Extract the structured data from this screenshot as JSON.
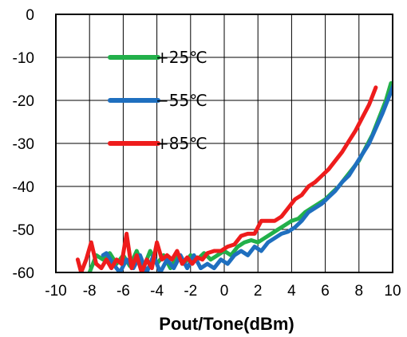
{
  "chart_data": {
    "type": "line",
    "title": "",
    "xlabel": "Pout/Tone(dBm)",
    "ylabel": "",
    "xlim": [
      -10,
      10
    ],
    "ylim": [
      -60,
      0
    ],
    "x_ticks": [
      -10,
      -8,
      -6,
      -4,
      -2,
      0,
      2,
      4,
      6,
      8,
      10
    ],
    "y_ticks": [
      0,
      -10,
      -20,
      -30,
      -40,
      -50,
      -60
    ],
    "x_tick_labels": [
      "-10",
      "-8",
      "-6",
      "-4",
      "-2",
      "0",
      "2",
      "4",
      "6",
      "8",
      "10"
    ],
    "y_tick_labels": [
      "0",
      "-10",
      "-20",
      "-30",
      "-40",
      "-50",
      "-60"
    ],
    "grid": true,
    "legend_position": "top-left",
    "series": [
      {
        "name": "+25℃",
        "color": "#22b04a",
        "points": [
          [
            -8.0,
            -60
          ],
          [
            -7.6,
            -56
          ],
          [
            -7.2,
            -57
          ],
          [
            -6.8,
            -55.5
          ],
          [
            -6.4,
            -58
          ],
          [
            -6.0,
            -56
          ],
          [
            -5.6,
            -58.5
          ],
          [
            -5.2,
            -55
          ],
          [
            -4.8,
            -59
          ],
          [
            -4.4,
            -55
          ],
          [
            -4.0,
            -58
          ],
          [
            -3.6,
            -56
          ],
          [
            -3.2,
            -59
          ],
          [
            -2.8,
            -56
          ],
          [
            -2.4,
            -58
          ],
          [
            -2.0,
            -56
          ],
          [
            -1.6,
            -57
          ],
          [
            -1.2,
            -55.5
          ],
          [
            -0.8,
            -57
          ],
          [
            -0.4,
            -56
          ],
          [
            0.0,
            -55
          ],
          [
            0.4,
            -56
          ],
          [
            0.8,
            -54
          ],
          [
            1.2,
            -53
          ],
          [
            1.6,
            -52.5
          ],
          [
            2.0,
            -53
          ],
          [
            2.4,
            -52
          ],
          [
            2.8,
            -51
          ],
          [
            3.2,
            -50
          ],
          [
            3.6,
            -49
          ],
          [
            4.0,
            -48
          ],
          [
            4.4,
            -47.5
          ],
          [
            4.8,
            -46
          ],
          [
            5.2,
            -45
          ],
          [
            5.6,
            -44
          ],
          [
            6.0,
            -43
          ],
          [
            6.4,
            -41.5
          ],
          [
            6.8,
            -40
          ],
          [
            7.2,
            -38
          ],
          [
            7.6,
            -36
          ],
          [
            8.0,
            -34
          ],
          [
            8.4,
            -31
          ],
          [
            8.8,
            -28
          ],
          [
            9.2,
            -24
          ],
          [
            9.6,
            -20
          ],
          [
            9.9,
            -16
          ]
        ]
      },
      {
        "name": "−55℃",
        "color": "#1f6fbf",
        "points": [
          [
            -7.2,
            -56
          ],
          [
            -7.0,
            -55.5
          ],
          [
            -6.6,
            -58
          ],
          [
            -6.2,
            -60
          ],
          [
            -5.8,
            -57
          ],
          [
            -5.4,
            -59
          ],
          [
            -5.0,
            -56
          ],
          [
            -4.6,
            -60
          ],
          [
            -4.2,
            -56
          ],
          [
            -3.8,
            -60
          ],
          [
            -3.4,
            -57
          ],
          [
            -3.0,
            -59
          ],
          [
            -2.6,
            -56
          ],
          [
            -2.2,
            -59
          ],
          [
            -1.8,
            -56
          ],
          [
            -1.4,
            -59
          ],
          [
            -1.0,
            -58
          ],
          [
            -0.6,
            -59
          ],
          [
            -0.2,
            -57
          ],
          [
            0.2,
            -58
          ],
          [
            0.6,
            -56
          ],
          [
            1.0,
            -55
          ],
          [
            1.4,
            -56
          ],
          [
            1.8,
            -54
          ],
          [
            2.2,
            -55
          ],
          [
            2.6,
            -53
          ],
          [
            3.0,
            -52
          ],
          [
            3.4,
            -51
          ],
          [
            3.8,
            -50.5
          ],
          [
            4.2,
            -49.5
          ],
          [
            4.6,
            -48
          ],
          [
            5.0,
            -46
          ],
          [
            5.4,
            -45
          ],
          [
            5.8,
            -44
          ],
          [
            6.2,
            -42.5
          ],
          [
            6.6,
            -41
          ],
          [
            7.0,
            -39
          ],
          [
            7.4,
            -37.5
          ],
          [
            7.8,
            -35
          ],
          [
            8.2,
            -32.5
          ],
          [
            8.6,
            -30
          ],
          [
            9.0,
            -26.5
          ],
          [
            9.4,
            -23
          ],
          [
            9.8,
            -19
          ],
          [
            10.2,
            -15
          ]
        ]
      },
      {
        "name": "+85℃",
        "color": "#ee1c1c",
        "points": [
          [
            -8.7,
            -57
          ],
          [
            -8.5,
            -60
          ],
          [
            -8.2,
            -57
          ],
          [
            -7.9,
            -53
          ],
          [
            -7.6,
            -58
          ],
          [
            -7.3,
            -59
          ],
          [
            -7.0,
            -57
          ],
          [
            -6.7,
            -59
          ],
          [
            -6.4,
            -57
          ],
          [
            -6.1,
            -58
          ],
          [
            -5.8,
            -51
          ],
          [
            -5.5,
            -59
          ],
          [
            -5.2,
            -56
          ],
          [
            -4.9,
            -60
          ],
          [
            -4.6,
            -57
          ],
          [
            -4.3,
            -59
          ],
          [
            -4.0,
            -53
          ],
          [
            -3.7,
            -57
          ],
          [
            -3.4,
            -56
          ],
          [
            -3.1,
            -57
          ],
          [
            -2.8,
            -55
          ],
          [
            -2.5,
            -58
          ],
          [
            -2.2,
            -56.5
          ],
          [
            -1.9,
            -58
          ],
          [
            -1.6,
            -56.5
          ],
          [
            -1.3,
            -57
          ],
          [
            -1.0,
            -55.5
          ],
          [
            -0.6,
            -55
          ],
          [
            -0.2,
            -55
          ],
          [
            0.2,
            -54
          ],
          [
            0.6,
            -53.5
          ],
          [
            1.0,
            -51.5
          ],
          [
            1.4,
            -51
          ],
          [
            1.8,
            -51
          ],
          [
            2.2,
            -48
          ],
          [
            2.6,
            -48
          ],
          [
            3.0,
            -48
          ],
          [
            3.4,
            -47
          ],
          [
            3.8,
            -45
          ],
          [
            4.2,
            -43
          ],
          [
            4.6,
            -42
          ],
          [
            5.0,
            -40
          ],
          [
            5.4,
            -39
          ],
          [
            5.8,
            -37.5
          ],
          [
            6.2,
            -36
          ],
          [
            6.6,
            -34
          ],
          [
            7.0,
            -32
          ],
          [
            7.4,
            -29.5
          ],
          [
            7.8,
            -27
          ],
          [
            8.2,
            -24
          ],
          [
            8.6,
            -21
          ],
          [
            9.0,
            -17
          ]
        ]
      }
    ]
  }
}
